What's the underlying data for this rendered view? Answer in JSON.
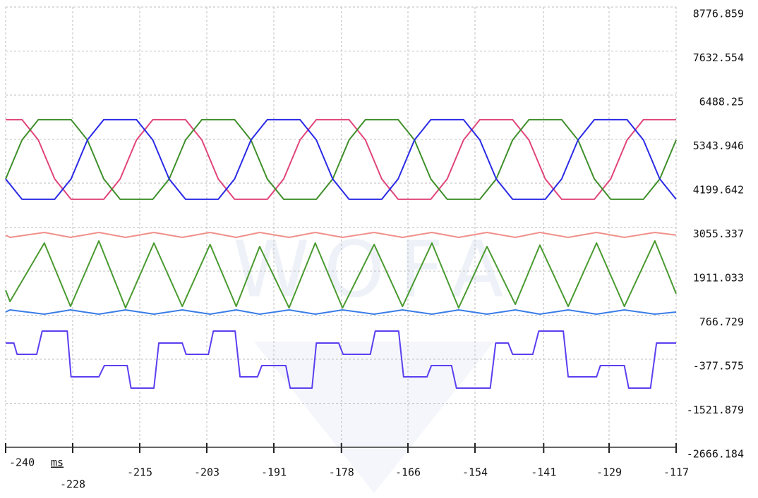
{
  "chart_data": {
    "type": "line",
    "watermark": "WOFA",
    "x_label": "ms",
    "xlim": [
      -240,
      -117
    ],
    "ylim": [
      -2666.184,
      8776.859
    ],
    "grid": true,
    "xticks": [
      -240,
      {
        "value": -227.7,
        "label": "-228"
      },
      {
        "value": -215.4,
        "label": "-215"
      },
      {
        "value": -203.1,
        "label": "-203"
      },
      {
        "value": -190.8,
        "label": "-191"
      },
      {
        "value": -178.4,
        "label": "-178"
      },
      {
        "value": -166.2,
        "label": "-166"
      },
      {
        "value": -153.9,
        "label": "-154"
      },
      {
        "value": -141.3,
        "label": "-141"
      },
      {
        "value": -129.3,
        "label": "-129"
      },
      -117
    ],
    "yticks": [
      8776.859,
      7632.554,
      6488.25,
      5343.946,
      4199.642,
      3055.337,
      1911.033,
      766.729,
      -377.575,
      -1521.879,
      -2666.184
    ],
    "series": [
      {
        "color": "#e0457b",
        "x": [
          -240,
          -237,
          -234,
          -231,
          -228,
          -225,
          -222,
          -219,
          -216,
          -213,
          -210,
          -207,
          -204,
          -201,
          -198,
          -195,
          -192,
          -189,
          -186,
          -183,
          -180,
          -177,
          -174,
          -171,
          -168,
          -165,
          -162,
          -159,
          -156,
          -153,
          -150,
          -147,
          -144,
          -141,
          -138,
          -135,
          -132,
          -129,
          -126,
          -123,
          -120,
          -117
        ],
        "values": [
          5850,
          5850,
          5322,
          4308,
          3780,
          3780,
          3780,
          4308,
          5322,
          5850,
          5850,
          5850,
          5322,
          4308,
          3780,
          3780,
          3780,
          4308,
          5322,
          5850,
          5850,
          5850,
          5322,
          4308,
          3780,
          3780,
          3780,
          4308,
          5322,
          5850,
          5850,
          5850,
          5322,
          4308,
          3780,
          3780,
          3780,
          4308,
          5322,
          5850,
          5850,
          5850
        ]
      },
      {
        "color": "#3f8f2a",
        "x": [
          -240,
          -237,
          -234,
          -231,
          -228,
          -225,
          -222,
          -219,
          -216,
          -213,
          -210,
          -207,
          -204,
          -201,
          -198,
          -195,
          -192,
          -189,
          -186,
          -183,
          -180,
          -177,
          -174,
          -171,
          -168,
          -165,
          -162,
          -159,
          -156,
          -153,
          -150,
          -147,
          -144,
          -141,
          -138,
          -135,
          -132,
          -129,
          -126,
          -123,
          -120,
          -117
        ],
        "values": [
          4308,
          5322,
          5850,
          5850,
          5850,
          5322,
          4308,
          3780,
          3780,
          3780,
          4308,
          5322,
          5850,
          5850,
          5850,
          5322,
          4308,
          3780,
          3780,
          3780,
          4308,
          5322,
          5850,
          5850,
          5850,
          5322,
          4308,
          3780,
          3780,
          3780,
          4308,
          5322,
          5850,
          5850,
          5850,
          5322,
          4308,
          3780,
          3780,
          3780,
          4308,
          5322
        ]
      },
      {
        "color": "#2a2ae6",
        "x": [
          -240,
          -237,
          -234,
          -231,
          -228,
          -225,
          -222,
          -219,
          -216,
          -213,
          -210,
          -207,
          -204,
          -201,
          -198,
          -195,
          -192,
          -189,
          -186,
          -183,
          -180,
          -177,
          -174,
          -171,
          -168,
          -165,
          -162,
          -159,
          -156,
          -153,
          -150,
          -147,
          -144,
          -141,
          -138,
          -135,
          -132,
          -129,
          -126,
          -123,
          -120,
          -117
        ],
        "values": [
          4308,
          3780,
          3780,
          3780,
          4308,
          5322,
          5850,
          5850,
          5850,
          5322,
          4308,
          3780,
          3780,
          3780,
          4308,
          5322,
          5850,
          5850,
          5850,
          5322,
          4308,
          3780,
          3780,
          3780,
          4308,
          5322,
          5850,
          5850,
          5850,
          5322,
          4308,
          3780,
          3780,
          3780,
          4308,
          5322,
          5850,
          5850,
          5850,
          5322,
          4308,
          3780
        ]
      },
      {
        "color": "#f0908a",
        "x": [
          -240,
          -239.2,
          -232.9,
          -228.1,
          -222.9,
          -218.0,
          -212.8,
          -207.6,
          -202.5,
          -197.7,
          -193.4,
          -188.0,
          -183.2,
          -178.2,
          -172.4,
          -167.2,
          -161.8,
          -156.9,
          -151.7,
          -146.5,
          -142.0,
          -136.8,
          -131.6,
          -126.5,
          -120.9,
          -117.0
        ],
        "values": [
          2850,
          2790,
          2918,
          2790,
          2918,
          2790,
          2918,
          2790,
          2918,
          2790,
          2918,
          2790,
          2918,
          2790,
          2918,
          2790,
          2918,
          2790,
          2918,
          2790,
          2918,
          2790,
          2918,
          2790,
          2918,
          2850
        ]
      },
      {
        "color": "#4a9a30",
        "x": [
          -240,
          -239.2,
          -232.9,
          -228.1,
          -222.9,
          -218.0,
          -212.8,
          -207.6,
          -202.5,
          -197.7,
          -193.4,
          -188.0,
          -183.2,
          -178.2,
          -172.4,
          -167.2,
          -161.8,
          -156.9,
          -151.7,
          -146.5,
          -142.0,
          -136.8,
          -131.6,
          -126.5,
          -120.9,
          -117.0
        ],
        "values": [
          1416,
          1123,
          2643,
          995,
          2698,
          958,
          2643,
          995,
          2606,
          995,
          2552,
          958,
          2643,
          958,
          2606,
          995,
          2643,
          958,
          2552,
          1050,
          2588,
          995,
          2643,
          995,
          2698,
          1325
        ]
      },
      {
        "color": "#3a7de8",
        "x": [
          -240,
          -239.2,
          -232.9,
          -228.1,
          -222.9,
          -218.0,
          -212.8,
          -207.6,
          -202.5,
          -197.7,
          -193.4,
          -188.0,
          -183.2,
          -178.2,
          -172.4,
          -167.2,
          -161.8,
          -156.9,
          -151.7,
          -146.5,
          -142.0,
          -136.8,
          -131.6,
          -126.5,
          -120.9,
          -117.0
        ],
        "values": [
          850,
          904,
          794,
          904,
          794,
          904,
          794,
          904,
          794,
          904,
          794,
          904,
          794,
          904,
          794,
          904,
          794,
          904,
          794,
          904,
          794,
          904,
          794,
          904,
          794,
          850
        ]
      },
      {
        "color": "#5a3ff0",
        "x": [
          -240,
          -238.5,
          -237.9,
          -234.3,
          -233.3,
          -228.7,
          -228.0,
          -222.9,
          -221.9,
          -217.7,
          -217.0,
          -212.8,
          -211.9,
          -207.6,
          -206.9,
          -202.8,
          -201.9,
          -197.9,
          -197.0,
          -193.8,
          -193.0,
          -188.6,
          -187.8,
          -183.8,
          -183.0,
          -178.9,
          -178.1,
          -173.1,
          -172.2,
          -167.9,
          -167.0,
          -162.7,
          -161.9,
          -158.2,
          -157.3,
          -151.1,
          -150.1,
          -147.8,
          -147.0,
          -143.3,
          -142.2,
          -137.7,
          -136.8,
          -131.6,
          -130.9,
          -126.5,
          -125.7,
          -121.7,
          -120.6,
          -117.0
        ],
        "values": [
          43,
          43,
          -250,
          -250,
          354,
          354,
          -836,
          -836,
          -543,
          -543,
          -1129,
          -1129,
          43,
          43,
          -250,
          -250,
          354,
          354,
          -836,
          -836,
          -543,
          -543,
          -1129,
          -1129,
          43,
          43,
          -250,
          -250,
          354,
          354,
          -836,
          -836,
          -543,
          -543,
          -1129,
          -1129,
          43,
          43,
          -250,
          -250,
          354,
          354,
          -836,
          -836,
          -543,
          -543,
          -1129,
          -1129,
          43,
          43
        ]
      }
    ]
  }
}
